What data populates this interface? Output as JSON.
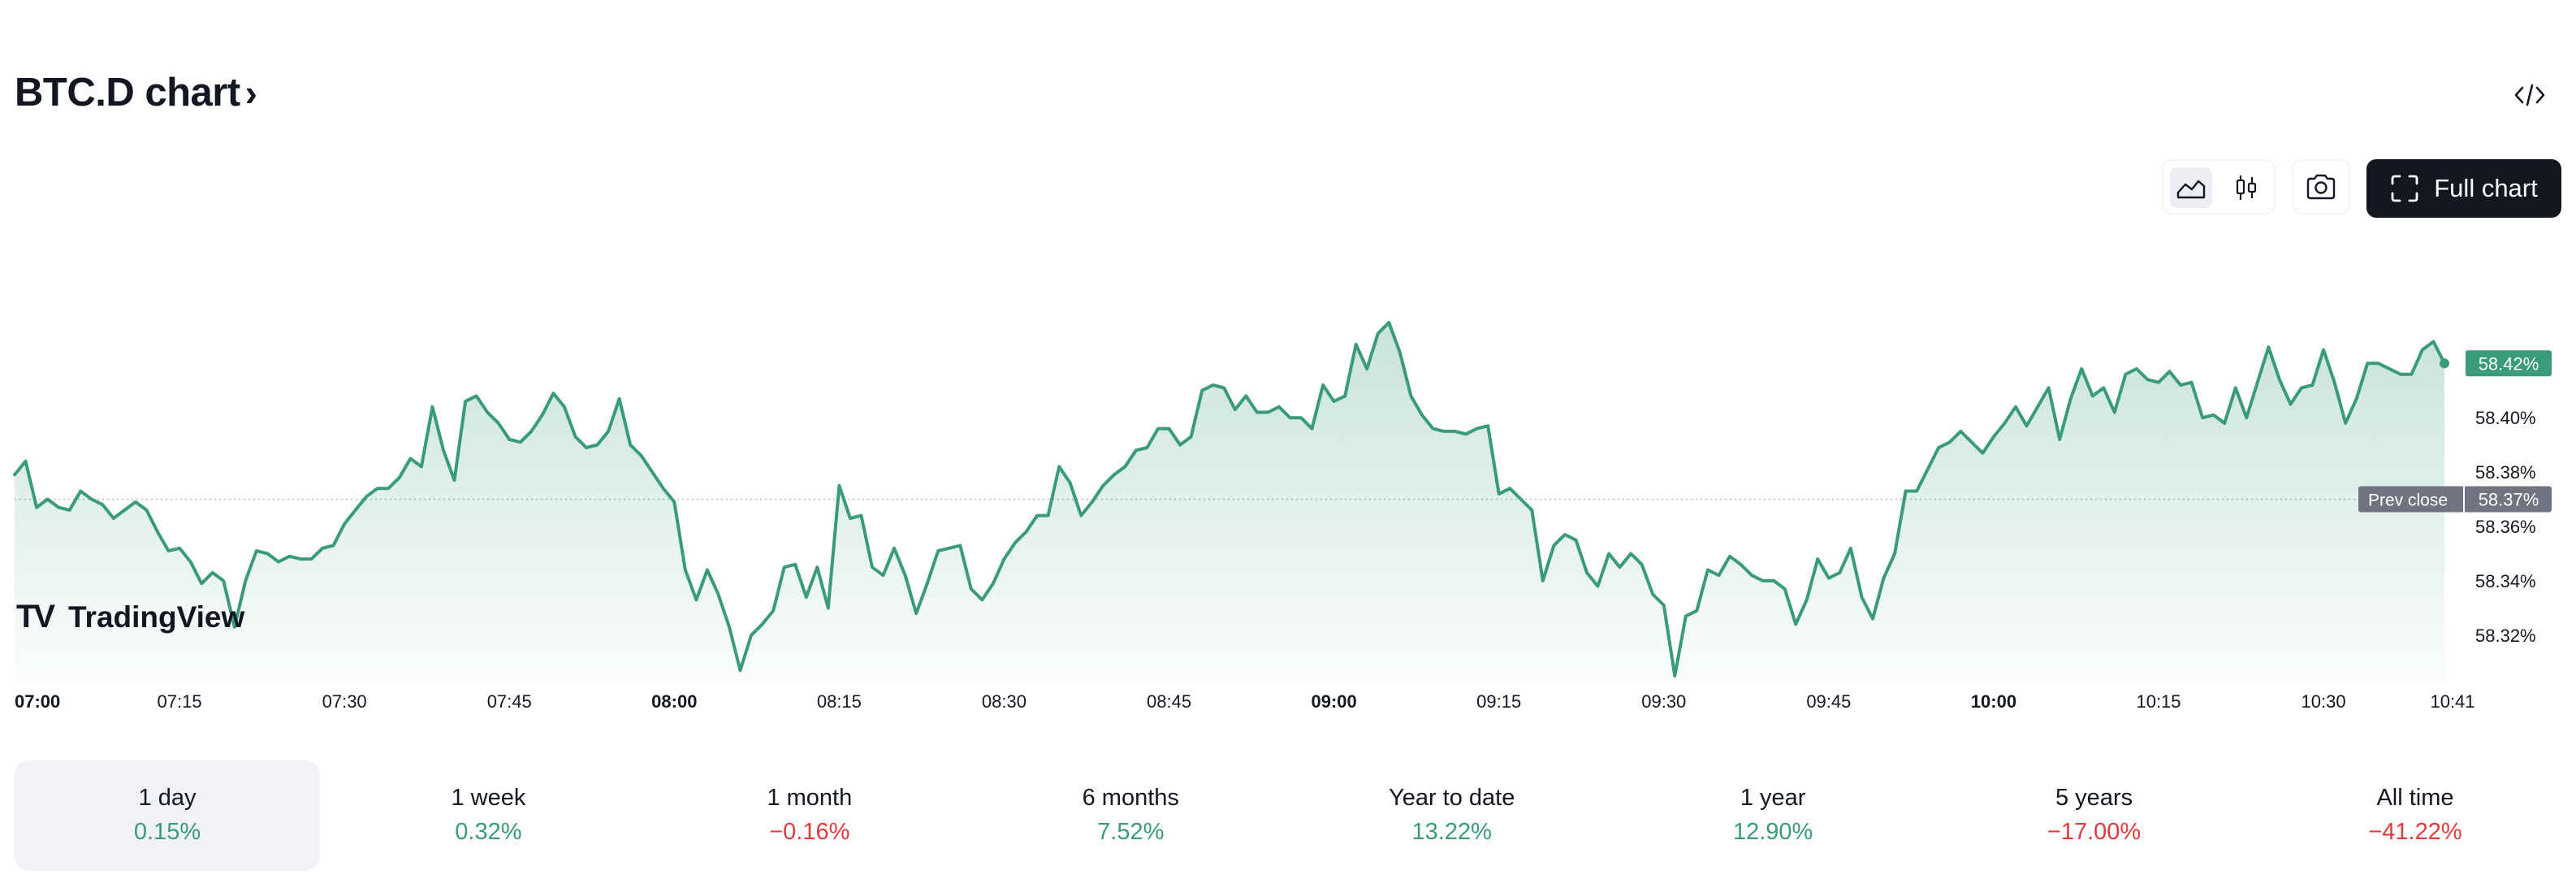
{
  "header": {
    "title": "BTC.D chart",
    "title_chevron": "›",
    "embed_icon": "code-icon"
  },
  "toolbar": {
    "line_chart_icon": "area-chart-icon",
    "candle_icon": "candlestick-icon",
    "snapshot_icon": "camera-icon",
    "full_chart_icon": "fullscreen-icon",
    "full_chart_label": "Full chart"
  },
  "watermark": {
    "logo_text": "TV",
    "name": "TradingView"
  },
  "chart_data": {
    "type": "area",
    "title": "",
    "xlabel": "",
    "ylabel": "",
    "ylim": [
      58.305,
      58.47
    ],
    "x_tick_labels": [
      "07:00",
      "07:15",
      "07:30",
      "07:45",
      "08:00",
      "08:15",
      "08:30",
      "08:45",
      "09:00",
      "09:15",
      "09:30",
      "09:45",
      "10:00",
      "10:15",
      "10:30",
      "10:41"
    ],
    "x_tick_bold": [
      "07:00",
      "08:00",
      "09:00",
      "10:00"
    ],
    "y_tick_labels": [
      "58.40%",
      "58.38%",
      "58.36%",
      "58.34%",
      "58.32%"
    ],
    "y_tick_values": [
      58.4,
      58.38,
      58.36,
      58.34,
      58.32
    ],
    "current_value_label": "58.42%",
    "current_value": 58.42,
    "prev_close_label": "Prev close",
    "prev_close_value_label": "58.37%",
    "prev_close": 58.37,
    "line_color": "#3a9b7a",
    "grid": false,
    "series": [
      {
        "points": [
          [
            "07:00",
            58.379
          ],
          [
            "07:01",
            58.384
          ],
          [
            "07:02",
            58.367
          ],
          [
            "07:03",
            58.37
          ],
          [
            "07:04",
            58.367
          ],
          [
            "07:05",
            58.366
          ],
          [
            "07:06",
            58.373
          ],
          [
            "07:07",
            58.37
          ],
          [
            "07:08",
            58.368
          ],
          [
            "07:09",
            58.363
          ],
          [
            "07:10",
            58.366
          ],
          [
            "07:11",
            58.369
          ],
          [
            "07:12",
            58.366
          ],
          [
            "07:13",
            58.358
          ],
          [
            "07:14",
            58.351
          ],
          [
            "07:15",
            58.352
          ],
          [
            "07:16",
            58.347
          ],
          [
            "07:17",
            58.339
          ],
          [
            "07:18",
            58.343
          ],
          [
            "07:19",
            58.34
          ],
          [
            "07:20",
            58.323
          ],
          [
            "07:21",
            58.34
          ],
          [
            "07:22",
            58.351
          ],
          [
            "07:23",
            58.35
          ],
          [
            "07:24",
            58.347
          ],
          [
            "07:25",
            58.349
          ],
          [
            "07:26",
            58.348
          ],
          [
            "07:27",
            58.348
          ],
          [
            "07:28",
            58.352
          ],
          [
            "07:29",
            58.353
          ],
          [
            "07:30",
            58.361
          ],
          [
            "07:31",
            58.366
          ],
          [
            "07:32",
            58.371
          ],
          [
            "07:33",
            58.374
          ],
          [
            "07:34",
            58.374
          ],
          [
            "07:35",
            58.378
          ],
          [
            "07:36",
            58.385
          ],
          [
            "07:37",
            58.382
          ],
          [
            "07:38",
            58.404
          ],
          [
            "07:39",
            58.388
          ],
          [
            "07:40",
            58.377
          ],
          [
            "07:41",
            58.406
          ],
          [
            "07:42",
            58.408
          ],
          [
            "07:43",
            58.402
          ],
          [
            "07:44",
            58.398
          ],
          [
            "07:45",
            58.392
          ],
          [
            "07:46",
            58.391
          ],
          [
            "07:47",
            58.395
          ],
          [
            "07:48",
            58.401
          ],
          [
            "07:49",
            58.409
          ],
          [
            "07:50",
            58.404
          ],
          [
            "07:51",
            58.393
          ],
          [
            "07:52",
            58.389
          ],
          [
            "07:53",
            58.39
          ],
          [
            "07:54",
            58.395
          ],
          [
            "07:55",
            58.407
          ],
          [
            "07:56",
            58.39
          ],
          [
            "07:57",
            58.386
          ],
          [
            "07:58",
            58.38
          ],
          [
            "07:59",
            58.374
          ],
          [
            "08:00",
            58.369
          ],
          [
            "08:01",
            58.344
          ],
          [
            "08:02",
            58.333
          ],
          [
            "08:03",
            58.344
          ],
          [
            "08:04",
            58.335
          ],
          [
            "08:05",
            58.323
          ],
          [
            "08:06",
            58.307
          ],
          [
            "08:07",
            58.32
          ],
          [
            "08:08",
            58.324
          ],
          [
            "08:09",
            58.329
          ],
          [
            "08:10",
            58.345
          ],
          [
            "08:11",
            58.346
          ],
          [
            "08:12",
            58.334
          ],
          [
            "08:13",
            58.345
          ],
          [
            "08:14",
            58.33
          ],
          [
            "08:15",
            58.375
          ],
          [
            "08:16",
            58.363
          ],
          [
            "08:17",
            58.364
          ],
          [
            "08:18",
            58.345
          ],
          [
            "08:19",
            58.342
          ],
          [
            "08:20",
            58.352
          ],
          [
            "08:21",
            58.342
          ],
          [
            "08:22",
            58.328
          ],
          [
            "08:23",
            58.339
          ],
          [
            "08:24",
            58.351
          ],
          [
            "08:25",
            58.352
          ],
          [
            "08:26",
            58.353
          ],
          [
            "08:27",
            58.337
          ],
          [
            "08:28",
            58.333
          ],
          [
            "08:29",
            58.339
          ],
          [
            "08:30",
            58.348
          ],
          [
            "08:31",
            58.354
          ],
          [
            "08:32",
            58.358
          ],
          [
            "08:33",
            58.364
          ],
          [
            "08:34",
            58.364
          ],
          [
            "08:35",
            58.382
          ],
          [
            "08:36",
            58.376
          ],
          [
            "08:37",
            58.364
          ],
          [
            "08:38",
            58.369
          ],
          [
            "08:39",
            58.375
          ],
          [
            "08:40",
            58.379
          ],
          [
            "08:41",
            58.382
          ],
          [
            "08:42",
            58.388
          ],
          [
            "08:43",
            58.389
          ],
          [
            "08:44",
            58.396
          ],
          [
            "08:45",
            58.396
          ],
          [
            "08:46",
            58.39
          ],
          [
            "08:47",
            58.393
          ],
          [
            "08:48",
            58.41
          ],
          [
            "08:49",
            58.412
          ],
          [
            "08:50",
            58.411
          ],
          [
            "08:51",
            58.403
          ],
          [
            "08:52",
            58.408
          ],
          [
            "08:53",
            58.402
          ],
          [
            "08:54",
            58.402
          ],
          [
            "08:55",
            58.404
          ],
          [
            "08:56",
            58.4
          ],
          [
            "08:57",
            58.4
          ],
          [
            "08:58",
            58.396
          ],
          [
            "08:59",
            58.412
          ],
          [
            "09:00",
            58.406
          ],
          [
            "09:01",
            58.408
          ],
          [
            "09:02",
            58.427
          ],
          [
            "09:03",
            58.418
          ],
          [
            "09:04",
            58.431
          ],
          [
            "09:05",
            58.435
          ],
          [
            "09:06",
            58.424
          ],
          [
            "09:07",
            58.408
          ],
          [
            "09:08",
            58.401
          ],
          [
            "09:09",
            58.396
          ],
          [
            "09:10",
            58.395
          ],
          [
            "09:11",
            58.395
          ],
          [
            "09:12",
            58.394
          ],
          [
            "09:13",
            58.396
          ],
          [
            "09:14",
            58.397
          ],
          [
            "09:15",
            58.372
          ],
          [
            "09:16",
            58.374
          ],
          [
            "09:17",
            58.37
          ],
          [
            "09:18",
            58.366
          ],
          [
            "09:19",
            58.34
          ],
          [
            "09:20",
            58.353
          ],
          [
            "09:21",
            58.357
          ],
          [
            "09:22",
            58.355
          ],
          [
            "09:23",
            58.343
          ],
          [
            "09:24",
            58.338
          ],
          [
            "09:25",
            58.35
          ],
          [
            "09:26",
            58.345
          ],
          [
            "09:27",
            58.35
          ],
          [
            "09:28",
            58.346
          ],
          [
            "09:29",
            58.335
          ],
          [
            "09:30",
            58.331
          ],
          [
            "09:31",
            58.305
          ],
          [
            "09:32",
            58.327
          ],
          [
            "09:33",
            58.329
          ],
          [
            "09:34",
            58.344
          ],
          [
            "09:35",
            58.342
          ],
          [
            "09:36",
            58.349
          ],
          [
            "09:37",
            58.346
          ],
          [
            "09:38",
            58.342
          ],
          [
            "09:39",
            58.34
          ],
          [
            "09:40",
            58.34
          ],
          [
            "09:41",
            58.337
          ],
          [
            "09:42",
            58.324
          ],
          [
            "09:43",
            58.333
          ],
          [
            "09:44",
            58.348
          ],
          [
            "09:45",
            58.341
          ],
          [
            "09:46",
            58.343
          ],
          [
            "09:47",
            58.352
          ],
          [
            "09:48",
            58.334
          ],
          [
            "09:49",
            58.326
          ],
          [
            "09:50",
            58.341
          ],
          [
            "09:51",
            58.35
          ],
          [
            "09:52",
            58.373
          ],
          [
            "09:53",
            58.373
          ],
          [
            "09:54",
            58.381
          ],
          [
            "09:55",
            58.389
          ],
          [
            "09:56",
            58.391
          ],
          [
            "09:57",
            58.395
          ],
          [
            "09:58",
            58.391
          ],
          [
            "09:59",
            58.387
          ],
          [
            "10:00",
            58.393
          ],
          [
            "10:01",
            58.398
          ],
          [
            "10:02",
            58.404
          ],
          [
            "10:03",
            58.397
          ],
          [
            "10:04",
            58.404
          ],
          [
            "10:05",
            58.411
          ],
          [
            "10:06",
            58.392
          ],
          [
            "10:07",
            58.407
          ],
          [
            "10:08",
            58.418
          ],
          [
            "10:09",
            58.408
          ],
          [
            "10:10",
            58.411
          ],
          [
            "10:11",
            58.402
          ],
          [
            "10:12",
            58.416
          ],
          [
            "10:13",
            58.418
          ],
          [
            "10:14",
            58.414
          ],
          [
            "10:15",
            58.413
          ],
          [
            "10:16",
            58.417
          ],
          [
            "10:17",
            58.412
          ],
          [
            "10:18",
            58.413
          ],
          [
            "10:19",
            58.4
          ],
          [
            "10:20",
            58.401
          ],
          [
            "10:21",
            58.398
          ],
          [
            "10:22",
            58.411
          ],
          [
            "10:23",
            58.4
          ],
          [
            "10:24",
            58.413
          ],
          [
            "10:25",
            58.426
          ],
          [
            "10:26",
            58.414
          ],
          [
            "10:27",
            58.405
          ],
          [
            "10:28",
            58.411
          ],
          [
            "10:29",
            58.412
          ],
          [
            "10:30",
            58.425
          ],
          [
            "10:31",
            58.413
          ],
          [
            "10:32",
            58.398
          ],
          [
            "10:33",
            58.407
          ],
          [
            "10:34",
            58.42
          ],
          [
            "10:35",
            58.42
          ],
          [
            "10:36",
            58.418
          ],
          [
            "10:37",
            58.416
          ],
          [
            "10:38",
            58.416
          ],
          [
            "10:39",
            58.425
          ],
          [
            "10:40",
            58.428
          ],
          [
            "10:41",
            58.42
          ]
        ]
      }
    ]
  },
  "periods": [
    {
      "label": "1 day",
      "value": "0.15%",
      "trend": "pos",
      "active": true
    },
    {
      "label": "1 week",
      "value": "0.32%",
      "trend": "pos",
      "active": false
    },
    {
      "label": "1 month",
      "value": "−0.16%",
      "trend": "neg",
      "active": false
    },
    {
      "label": "6 months",
      "value": "7.52%",
      "trend": "pos",
      "active": false
    },
    {
      "label": "Year to date",
      "value": "13.22%",
      "trend": "pos",
      "active": false
    },
    {
      "label": "1 year",
      "value": "12.90%",
      "trend": "pos",
      "active": false
    },
    {
      "label": "5 years",
      "value": "−17.00%",
      "trend": "neg",
      "active": false
    },
    {
      "label": "All time",
      "value": "−41.22%",
      "trend": "neg",
      "active": false
    }
  ]
}
